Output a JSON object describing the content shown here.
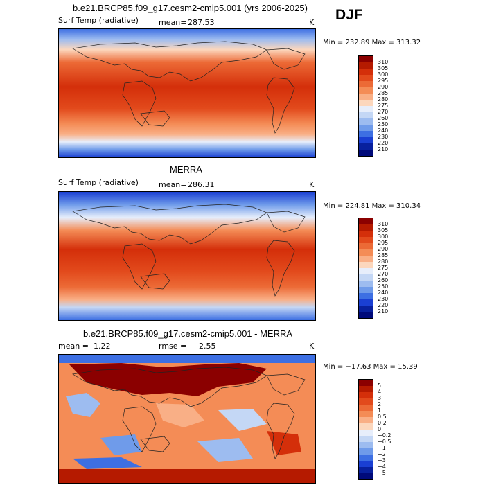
{
  "season": "DJF",
  "panels": [
    {
      "title": "b.e21.BRCP85.f09_g17.cesm2-cmip5.001 (yrs 2006-2025)",
      "variable": "Surf Temp (radiative)",
      "stat_left": "mean=",
      "stat_left_value": "287.53",
      "units": "K",
      "min_max": "Min = 232.89 Max = 313.32",
      "colorbar_labels": [
        "310",
        "305",
        "300",
        "295",
        "290",
        "285",
        "280",
        "275",
        "270",
        "260",
        "250",
        "240",
        "230",
        "220",
        "210"
      ]
    },
    {
      "title": "MERRA",
      "variable": "Surf Temp (radiative)",
      "stat_left": "mean=",
      "stat_left_value": "286.31",
      "units": "K",
      "min_max": "Min = 224.81 Max = 310.34",
      "colorbar_labels": [
        "310",
        "305",
        "300",
        "295",
        "290",
        "285",
        "280",
        "275",
        "270",
        "260",
        "250",
        "240",
        "230",
        "220",
        "210"
      ]
    },
    {
      "title": "b.e21.BRCP85.f09_g17.cesm2-cmip5.001 - MERRA",
      "stat_left": "mean =",
      "stat_left_value": "1.22",
      "stat_right": "rmse =",
      "stat_right_value": "2.55",
      "units": "K",
      "min_max": "Min = −17.63 Max =   15.39",
      "colorbar_labels": [
        "5",
        "4",
        "3",
        "2",
        "1",
        "0.5",
        "0.2",
        "0",
        "−0.2",
        "−0.5",
        "−1",
        "−2",
        "−3",
        "−4",
        "−5"
      ]
    }
  ],
  "colors": {
    "abs_scale": [
      "#8b0000",
      "#b51a00",
      "#d42f0a",
      "#e24a1c",
      "#ec6a36",
      "#f48c56",
      "#f9af86",
      "#fcd7bd",
      "#e7eefb",
      "#c4d7f5",
      "#9dbcf0",
      "#6f9bea",
      "#3d6fe3",
      "#1a3fd3",
      "#08209e",
      "#000a7a"
    ],
    "diff_scale": [
      "#8b0000",
      "#b51a00",
      "#d42f0a",
      "#e24a1c",
      "#ec6a36",
      "#f48c56",
      "#f9af86",
      "#fcd7bd",
      "#e7eefb",
      "#c4d7f5",
      "#9dbcf0",
      "#6f9bea",
      "#3d6fe3",
      "#1a3fd3",
      "#08209e",
      "#000a7a"
    ]
  }
}
